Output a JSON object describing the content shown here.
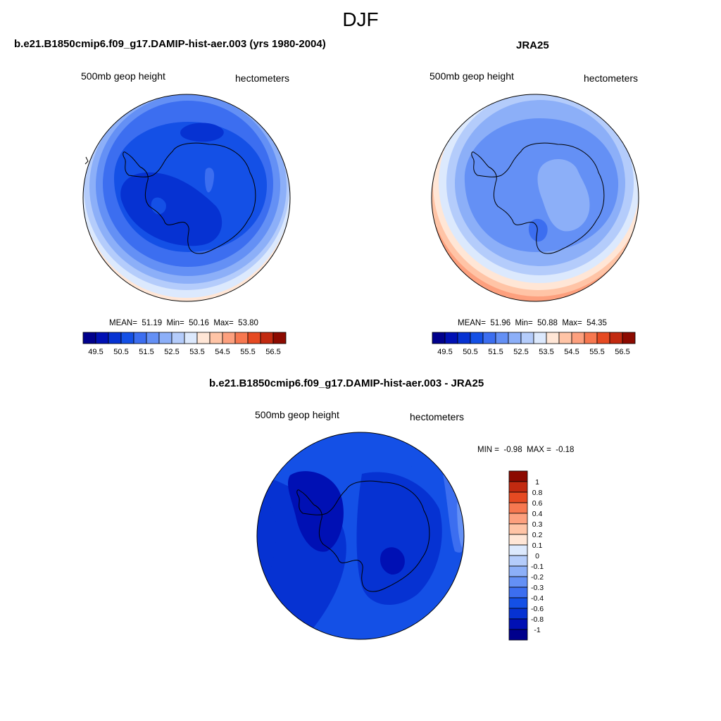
{
  "title": "DJF",
  "colors": {
    "scale": [
      "#00008c",
      "#0010b4",
      "#0632d2",
      "#1450e6",
      "#3c6ef0",
      "#6490f5",
      "#8caff8",
      "#b4ccfb",
      "#dce9fd",
      "#ffe6d6",
      "#ffc4a6",
      "#fda07e",
      "#f77850",
      "#e64a22",
      "#c22a10",
      "#8c0a00"
    ],
    "coastline": "#000000"
  },
  "panels": {
    "model": {
      "title": "b.e21.B1850cmip6.f09_g17.DAMIP-hist-aer.003 (yrs 1980-2004)",
      "variable": "500mb geop height",
      "units": "hectometers",
      "stats": {
        "mean_label": "MEAN=",
        "mean": "51.19",
        "min_label": "Min=",
        "min": "50.16",
        "max_label": "Max=",
        "max": "53.80"
      },
      "colorbar_labels": [
        "49.5",
        "50.5",
        "51.5",
        "52.5",
        "53.5",
        "54.5",
        "55.5",
        "56.5"
      ]
    },
    "obs": {
      "title": "JRA25",
      "variable": "500mb geop height",
      "units": "hectometers",
      "stats": {
        "mean_label": "MEAN=",
        "mean": "51.96",
        "min_label": "Min=",
        "min": "50.88",
        "max_label": "Max=",
        "max": "54.35"
      },
      "colorbar_labels": [
        "49.5",
        "50.5",
        "51.5",
        "52.5",
        "53.5",
        "54.5",
        "55.5",
        "56.5"
      ]
    },
    "diff": {
      "title": "b.e21.B1850cmip6.f09_g17.DAMIP-hist-aer.003 - JRA25",
      "variable": "500mb geop height",
      "units": "hectometers",
      "stats": {
        "min_label": "MIN =",
        "min": "-0.98",
        "max_label": "MAX =",
        "max": "-0.18"
      },
      "colorbar_labels": [
        "1",
        "0.8",
        "0.6",
        "0.4",
        "0.3",
        "0.2",
        "0.1",
        "0",
        "-0.1",
        "-0.2",
        "-0.3",
        "-0.4",
        "-0.6",
        "-0.8",
        "-1"
      ]
    }
  }
}
